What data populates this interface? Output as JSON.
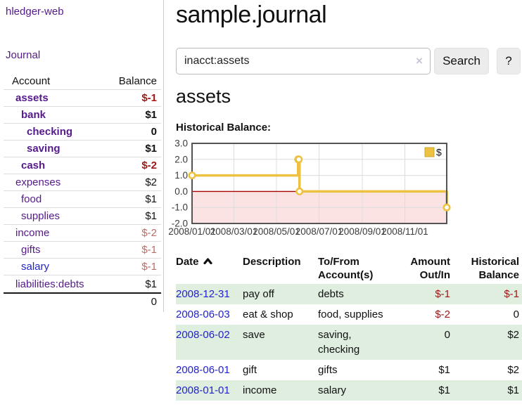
{
  "app": {
    "brand": "hledger-web",
    "nav": {
      "journal": "Journal"
    }
  },
  "sidebar": {
    "headers": {
      "account": "Account",
      "balance": "Balance"
    },
    "accounts": [
      {
        "name": "assets",
        "indent": 1,
        "bold": true,
        "tone": "neg-strong",
        "balance": "$-1"
      },
      {
        "name": "bank",
        "indent": 2,
        "bold": true,
        "tone": "pos",
        "balance": "$1"
      },
      {
        "name": "checking",
        "indent": 3,
        "bold": true,
        "tone": "pos",
        "balance": "0"
      },
      {
        "name": "saving",
        "indent": 3,
        "bold": true,
        "tone": "pos",
        "balance": "$1"
      },
      {
        "name": "cash",
        "indent": 2,
        "bold": true,
        "tone": "neg-strong",
        "balance": "$-2"
      },
      {
        "name": "expenses",
        "indent": 1,
        "bold": false,
        "tone": "pos",
        "balance": "$2"
      },
      {
        "name": "food",
        "indent": 2,
        "bold": false,
        "tone": "pos",
        "balance": "$1"
      },
      {
        "name": "supplies",
        "indent": 2,
        "bold": false,
        "tone": "pos",
        "balance": "$1"
      },
      {
        "name": "income",
        "indent": 1,
        "bold": false,
        "tone": "neg-soft",
        "balance": "$-2"
      },
      {
        "name": "gifts",
        "indent": 2,
        "bold": false,
        "tone": "neg-soft",
        "balance": "$-1"
      },
      {
        "name": "salary",
        "indent": 2,
        "bold": false,
        "tone": "neg-soft",
        "balance": "$-1",
        "link_color": "blue"
      },
      {
        "name": "liabilities:debts",
        "indent": 1,
        "bold": false,
        "tone": "pos",
        "balance": "$1"
      }
    ],
    "total": "0"
  },
  "header": {
    "title": "sample.journal"
  },
  "search": {
    "value": "inacct:assets",
    "clear_icon": "×",
    "button_label": "Search",
    "help_label": "?"
  },
  "account_page": {
    "heading": "assets",
    "chart_title": "Historical Balance:"
  },
  "chart_data": {
    "type": "line",
    "step": true,
    "title": "Historical Balance:",
    "legend": {
      "label": "$",
      "position": "top-right"
    },
    "series": [
      {
        "name": "$",
        "color": "#edc240",
        "points": [
          {
            "date": "2008-01-01",
            "value": 1
          },
          {
            "date": "2008-06-01",
            "value": 2
          },
          {
            "date": "2008-06-02",
            "value": 2
          },
          {
            "date": "2008-06-03",
            "value": 0
          },
          {
            "date": "2008-12-31",
            "value": -1
          }
        ]
      }
    ],
    "x_range": [
      "2008-01-01",
      "2008-12-31"
    ],
    "x_ticks": [
      {
        "date": "2008-01-01",
        "label": "2008/01/01"
      },
      {
        "date": "2008-03-01",
        "label": "2008/03/01"
      },
      {
        "date": "2008-05-01",
        "label": "2008/05/01"
      },
      {
        "date": "2008-07-01",
        "label": "2008/07/01"
      },
      {
        "date": "2008-09-01",
        "label": "2008/09/01"
      },
      {
        "date": "2008-11-01",
        "label": "2008/11/01"
      }
    ],
    "ylim": [
      -2,
      3
    ],
    "y_ticks": [
      {
        "value": 3,
        "label": "3.0"
      },
      {
        "value": 2,
        "label": "2.0"
      },
      {
        "value": 1,
        "label": "1.0"
      },
      {
        "value": 0,
        "label": "0.0"
      },
      {
        "value": -1,
        "label": "-1.0"
      },
      {
        "value": -2,
        "label": "-2.0"
      }
    ],
    "grid": true,
    "colors": {
      "line": "#edc240",
      "marker_fill": "#ffffff",
      "negative_region": "#fce3e3",
      "zero_line": "#aa0000",
      "gridline": "#dcdcdc",
      "border": "#545454",
      "tick_text": "#3a3a3a"
    }
  },
  "register": {
    "headers": [
      "Date",
      "Description",
      "To/From Account(s)",
      "Amount Out/In",
      "Historical Balance"
    ],
    "sort_icon": "chevron-up",
    "rows": [
      {
        "date": "2008-12-31",
        "description": "pay off",
        "accounts": "debts",
        "amount": "$-1",
        "amount_neg": true,
        "balance": "$-1",
        "balance_neg": true,
        "shade": true
      },
      {
        "date": "2008-06-03",
        "description": "eat & shop",
        "accounts": "food, supplies",
        "amount": "$-2",
        "amount_neg": true,
        "balance": "0",
        "balance_neg": false,
        "shade": false
      },
      {
        "date": "2008-06-02",
        "description": "save",
        "accounts": "saving, checking",
        "amount": "0",
        "amount_neg": false,
        "balance": "$2",
        "balance_neg": false,
        "shade": true
      },
      {
        "date": "2008-06-01",
        "description": "gift",
        "accounts": "gifts",
        "amount": "$1",
        "amount_neg": false,
        "balance": "$2",
        "balance_neg": false,
        "shade": false
      },
      {
        "date": "2008-01-01",
        "description": "income",
        "accounts": "salary",
        "amount": "$1",
        "amount_neg": false,
        "balance": "$1",
        "balance_neg": false,
        "shade": true
      }
    ]
  },
  "colors": {
    "link_purple": "#551a8b",
    "link_blue": "#2222cc",
    "negative_strong": "#9e1616",
    "negative_soft": "#b96c6c",
    "row_stripe_green": "#dfeedf",
    "sidebar_divider": "#cccccc",
    "button_bg": "#ececec"
  }
}
